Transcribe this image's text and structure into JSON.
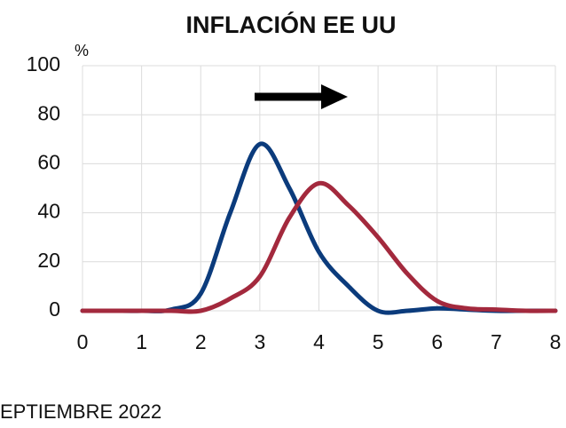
{
  "chart_data": {
    "type": "line",
    "title": "INFLACIÓN EE UU",
    "y_label": "%",
    "footer": "EPTIEMBRE 2022",
    "x": [
      0,
      0.5,
      1,
      1.5,
      2,
      2.5,
      3,
      3.5,
      4,
      4.5,
      5,
      5.5,
      6,
      6.5,
      7,
      7.5,
      8
    ],
    "series": [
      {
        "color": "#0b3b7c",
        "values": [
          0,
          0,
          0,
          0.5,
          7,
          40,
          68,
          50,
          24,
          10,
          0,
          0,
          1,
          0.5,
          0,
          0,
          0
        ]
      },
      {
        "color": "#a3293d",
        "values": [
          0,
          0,
          0,
          0,
          0,
          5,
          14,
          38,
          52,
          43,
          30,
          15,
          4,
          1,
          0.5,
          0,
          0
        ]
      }
    ],
    "xlim": [
      0,
      8
    ],
    "xticks": [
      0,
      1,
      2,
      3,
      4,
      5,
      6,
      7,
      8
    ],
    "ylim": [
      0,
      100
    ],
    "yticks": [
      0,
      20,
      40,
      60,
      80,
      100
    ],
    "grid": true
  }
}
